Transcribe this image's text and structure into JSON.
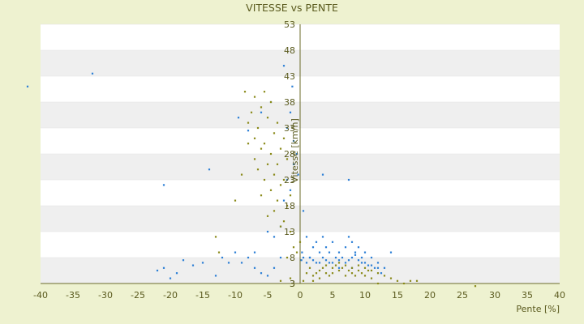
{
  "chart_data": {
    "type": "scatter",
    "title": "VITESSE vs PENTE",
    "xlabel": "Pente [%]",
    "ylabel": "Vitesse [km/h]",
    "xlim": [
      -40,
      40
    ],
    "ylim": [
      3,
      53
    ],
    "x_ticks": [
      "-40",
      "-35",
      "-30",
      "-25",
      "-20",
      "-15",
      "-10",
      "-5",
      "0",
      "5",
      "10",
      "15",
      "20",
      "25",
      "30",
      "35",
      "40"
    ],
    "y_ticks": [
      "3",
      "3",
      "8",
      "13",
      "18",
      "23",
      "28",
      "33",
      "38",
      "43",
      "48",
      "53"
    ],
    "grid": "horizontal bands",
    "colors": {
      "blue": "#2c7fd6",
      "olive": "#8a8a1a",
      "band": "#efefef",
      "axis": "#6b6b2a"
    },
    "series": [
      {
        "color": "#2c7fd6",
        "points": [
          [
            -42,
            41
          ],
          [
            -32,
            43.5
          ],
          [
            -21,
            22
          ],
          [
            -14,
            25
          ],
          [
            -9.5,
            35
          ],
          [
            -8,
            32.5
          ],
          [
            -6,
            36
          ],
          [
            -4.5,
            38
          ],
          [
            -2.5,
            45
          ],
          [
            -1.2,
            41
          ],
          [
            -1.5,
            36
          ],
          [
            -2,
            33
          ],
          [
            -1,
            30.5
          ],
          [
            -0.5,
            28
          ],
          [
            -1,
            26
          ],
          [
            -0.3,
            24
          ],
          [
            -2,
            23
          ],
          [
            -1.5,
            21
          ],
          [
            -2.5,
            19
          ],
          [
            -3,
            14
          ],
          [
            -4,
            12
          ],
          [
            -5,
            13
          ],
          [
            -7,
            9
          ],
          [
            -10,
            9
          ],
          [
            -11,
            7
          ],
          [
            -12,
            8
          ],
          [
            -13,
            4.5
          ],
          [
            -15,
            7
          ],
          [
            -16.5,
            6.5
          ],
          [
            -18,
            7.5
          ],
          [
            -19,
            5
          ],
          [
            -20,
            4
          ],
          [
            -21,
            6
          ],
          [
            -22,
            5.5
          ],
          [
            -8,
            8
          ],
          [
            -6,
            5
          ],
          [
            -5,
            4.5
          ],
          [
            -3,
            8
          ],
          [
            -4,
            6
          ],
          [
            -7,
            6
          ],
          [
            -9,
            7
          ],
          [
            0.5,
            17
          ],
          [
            1,
            12
          ],
          [
            0.3,
            9
          ],
          [
            0.5,
            8
          ],
          [
            1.5,
            8
          ],
          [
            2,
            10
          ],
          [
            2.5,
            11
          ],
          [
            3,
            9
          ],
          [
            3.5,
            12
          ],
          [
            4,
            10
          ],
          [
            4.5,
            9
          ],
          [
            5,
            11
          ],
          [
            6,
            9
          ],
          [
            7,
            10
          ],
          [
            7.5,
            12
          ],
          [
            8,
            11
          ],
          [
            8.5,
            9
          ],
          [
            9,
            10
          ],
          [
            9.5,
            8
          ],
          [
            10,
            9
          ],
          [
            11,
            8
          ],
          [
            12,
            7
          ],
          [
            13,
            6
          ],
          [
            14,
            9
          ],
          [
            3.5,
            24
          ],
          [
            7.5,
            23
          ],
          [
            1,
            7
          ],
          [
            2,
            7.5
          ],
          [
            3,
            7
          ],
          [
            4,
            7.5
          ],
          [
            5,
            7
          ],
          [
            6,
            7.5
          ],
          [
            7,
            7
          ],
          [
            8,
            8
          ],
          [
            9,
            7.5
          ],
          [
            10,
            7
          ],
          [
            11,
            6.5
          ],
          [
            12,
            6
          ],
          [
            0.2,
            7.5
          ],
          [
            1.5,
            8
          ],
          [
            2.5,
            7
          ],
          [
            3.5,
            8
          ],
          [
            4.5,
            7
          ],
          [
            6.5,
            8
          ],
          [
            7.5,
            7.5
          ],
          [
            8.5,
            8.5
          ],
          [
            9.5,
            7
          ],
          [
            10.5,
            6.5
          ],
          [
            11.5,
            6
          ],
          [
            12.5,
            5
          ],
          [
            5.5,
            8
          ],
          [
            6,
            6
          ],
          [
            8,
            6
          ]
        ]
      },
      {
        "color": "#8a8a1a",
        "points": [
          [
            -8.5,
            40
          ],
          [
            -7,
            39
          ],
          [
            -5.5,
            40
          ],
          [
            -4.5,
            38
          ],
          [
            -6,
            37
          ],
          [
            -7.5,
            36
          ],
          [
            -5,
            35
          ],
          [
            -3.5,
            34
          ],
          [
            -8,
            34
          ],
          [
            -6.5,
            33
          ],
          [
            -4,
            32
          ],
          [
            -2.5,
            31
          ],
          [
            -7,
            31
          ],
          [
            -5.5,
            30
          ],
          [
            -3,
            29
          ],
          [
            -8,
            30
          ],
          [
            -6,
            29
          ],
          [
            -4.5,
            28
          ],
          [
            -2,
            27
          ],
          [
            -7,
            27
          ],
          [
            -5,
            26
          ],
          [
            -3.5,
            26
          ],
          [
            -6.5,
            25
          ],
          [
            -4,
            24
          ],
          [
            -2.5,
            23
          ],
          [
            -5.5,
            23
          ],
          [
            -3,
            22
          ],
          [
            -4.5,
            21
          ],
          [
            -1.5,
            20
          ],
          [
            -6,
            20
          ],
          [
            -3.5,
            19
          ],
          [
            -2,
            18
          ],
          [
            -4,
            17
          ],
          [
            -5,
            16
          ],
          [
            -2.5,
            15
          ],
          [
            -3,
            14
          ],
          [
            -1.5,
            13
          ],
          [
            -9,
            24
          ],
          [
            -10,
            19
          ],
          [
            -13,
            12
          ],
          [
            -12.5,
            9
          ],
          [
            -1,
            10
          ],
          [
            0,
            11
          ],
          [
            -0.5,
            9
          ],
          [
            -2,
            8
          ],
          [
            -3,
            3.5
          ],
          [
            -1.5,
            4
          ],
          [
            0.5,
            3.5
          ],
          [
            1,
            5
          ],
          [
            2,
            4.5
          ],
          [
            3,
            5.5
          ],
          [
            4,
            5
          ],
          [
            5,
            6
          ],
          [
            6,
            5.5
          ],
          [
            7,
            6.5
          ],
          [
            8,
            6
          ],
          [
            9,
            5.5
          ],
          [
            10,
            6
          ],
          [
            11,
            5.5
          ],
          [
            12,
            5
          ],
          [
            13,
            4.5
          ],
          [
            14,
            4
          ],
          [
            15,
            3.5
          ],
          [
            16,
            3
          ],
          [
            17,
            3.5
          ],
          [
            18,
            3.5
          ],
          [
            27,
            2.5
          ],
          [
            2,
            3.5
          ],
          [
            3,
            4
          ],
          [
            4,
            6.5
          ],
          [
            5,
            5
          ],
          [
            6,
            7
          ],
          [
            7,
            4.5
          ],
          [
            8,
            5
          ],
          [
            9,
            6.5
          ],
          [
            10,
            4.5
          ],
          [
            11,
            4
          ],
          [
            12,
            3
          ],
          [
            6.5,
            6
          ],
          [
            7.5,
            5.5
          ],
          [
            8.5,
            4.5
          ],
          [
            9.5,
            5
          ],
          [
            10.5,
            5.5
          ],
          [
            4.5,
            4.5
          ],
          [
            5.5,
            6.5
          ],
          [
            3.5,
            6
          ],
          [
            2.5,
            5
          ],
          [
            1.5,
            6
          ]
        ]
      }
    ]
  }
}
